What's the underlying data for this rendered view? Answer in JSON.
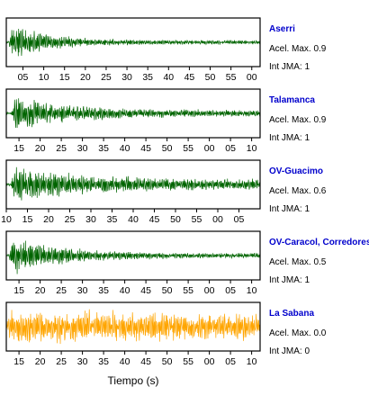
{
  "chart_data": {
    "type": "line",
    "xlabel": "Tiempo (s)",
    "panels": [
      {
        "station": "Aserri",
        "accel_label": "Acel. Max. 0.9",
        "jma_label": "Int JMA: 1",
        "color": "#006400",
        "tick_labels": [
          "05",
          "10",
          "15",
          "20",
          "25",
          "30",
          "35",
          "40",
          "45",
          "50",
          "55",
          "00"
        ],
        "tick_seconds": [
          5,
          10,
          15,
          20,
          25,
          30,
          35,
          40,
          45,
          50,
          55,
          60
        ],
        "xlim_seconds": [
          1,
          62
        ],
        "envelope": {
          "onset_seconds": 1.5,
          "peak": 0.95,
          "decay_seconds": 9,
          "floor": 0.09,
          "noise": 0.03
        }
      },
      {
        "station": "Talamanca",
        "accel_label": "Acel. Max. 0.9",
        "jma_label": "Int JMA: 1",
        "color": "#006400",
        "tick_labels": [
          "15",
          "20",
          "25",
          "30",
          "35",
          "40",
          "45",
          "50",
          "55",
          "00",
          "05",
          "10"
        ],
        "tick_seconds": [
          15,
          20,
          25,
          30,
          35,
          40,
          45,
          50,
          55,
          60,
          65,
          70
        ],
        "xlim_seconds": [
          12,
          72
        ],
        "envelope": {
          "onset_seconds": 13,
          "peak": 0.85,
          "decay_seconds": 14,
          "floor": 0.13,
          "noise": 0.04
        }
      },
      {
        "station": "OV-Guacimo",
        "accel_label": "Acel. Max. 0.6",
        "jma_label": "Int JMA: 1",
        "color": "#006400",
        "tick_labels": [
          "10",
          "15",
          "20",
          "25",
          "30",
          "35",
          "40",
          "45",
          "50",
          "55",
          "00",
          "05"
        ],
        "tick_seconds": [
          10,
          15,
          20,
          25,
          30,
          35,
          40,
          45,
          50,
          55,
          60,
          65
        ],
        "xlim_seconds": [
          10,
          70
        ],
        "envelope": {
          "onset_seconds": 11,
          "peak": 0.9,
          "decay_seconds": 16,
          "floor": 0.22,
          "noise": 0.05
        }
      },
      {
        "station": "OV-Caracol, Corredores",
        "accel_label": "Acel. Max. 0.5",
        "jma_label": "Int JMA: 1",
        "color": "#006400",
        "tick_labels": [
          "15",
          "20",
          "25",
          "30",
          "35",
          "40",
          "45",
          "50",
          "55",
          "00",
          "05",
          "10"
        ],
        "tick_seconds": [
          15,
          20,
          25,
          30,
          35,
          40,
          45,
          50,
          55,
          60,
          65,
          70
        ],
        "xlim_seconds": [
          12,
          72
        ],
        "envelope": {
          "onset_seconds": 12.5,
          "peak": 0.95,
          "decay_seconds": 12,
          "floor": 0.1,
          "noise": 0.04
        }
      },
      {
        "station": "La Sabana",
        "accel_label": "Acel. Max. 0.0",
        "jma_label": "Int JMA: 0",
        "color": "#ffa500",
        "tick_labels": [
          "15",
          "20",
          "25",
          "30",
          "35",
          "40",
          "45",
          "50",
          "55",
          "00",
          "05",
          "10"
        ],
        "tick_seconds": [
          15,
          20,
          25,
          30,
          35,
          40,
          45,
          50,
          55,
          60,
          65,
          70
        ],
        "xlim_seconds": [
          12,
          72
        ],
        "envelope": {
          "onset_seconds": 12,
          "peak": 0.75,
          "decay_seconds": 60,
          "floor": 0.45,
          "noise": 0.25
        }
      }
    ]
  }
}
